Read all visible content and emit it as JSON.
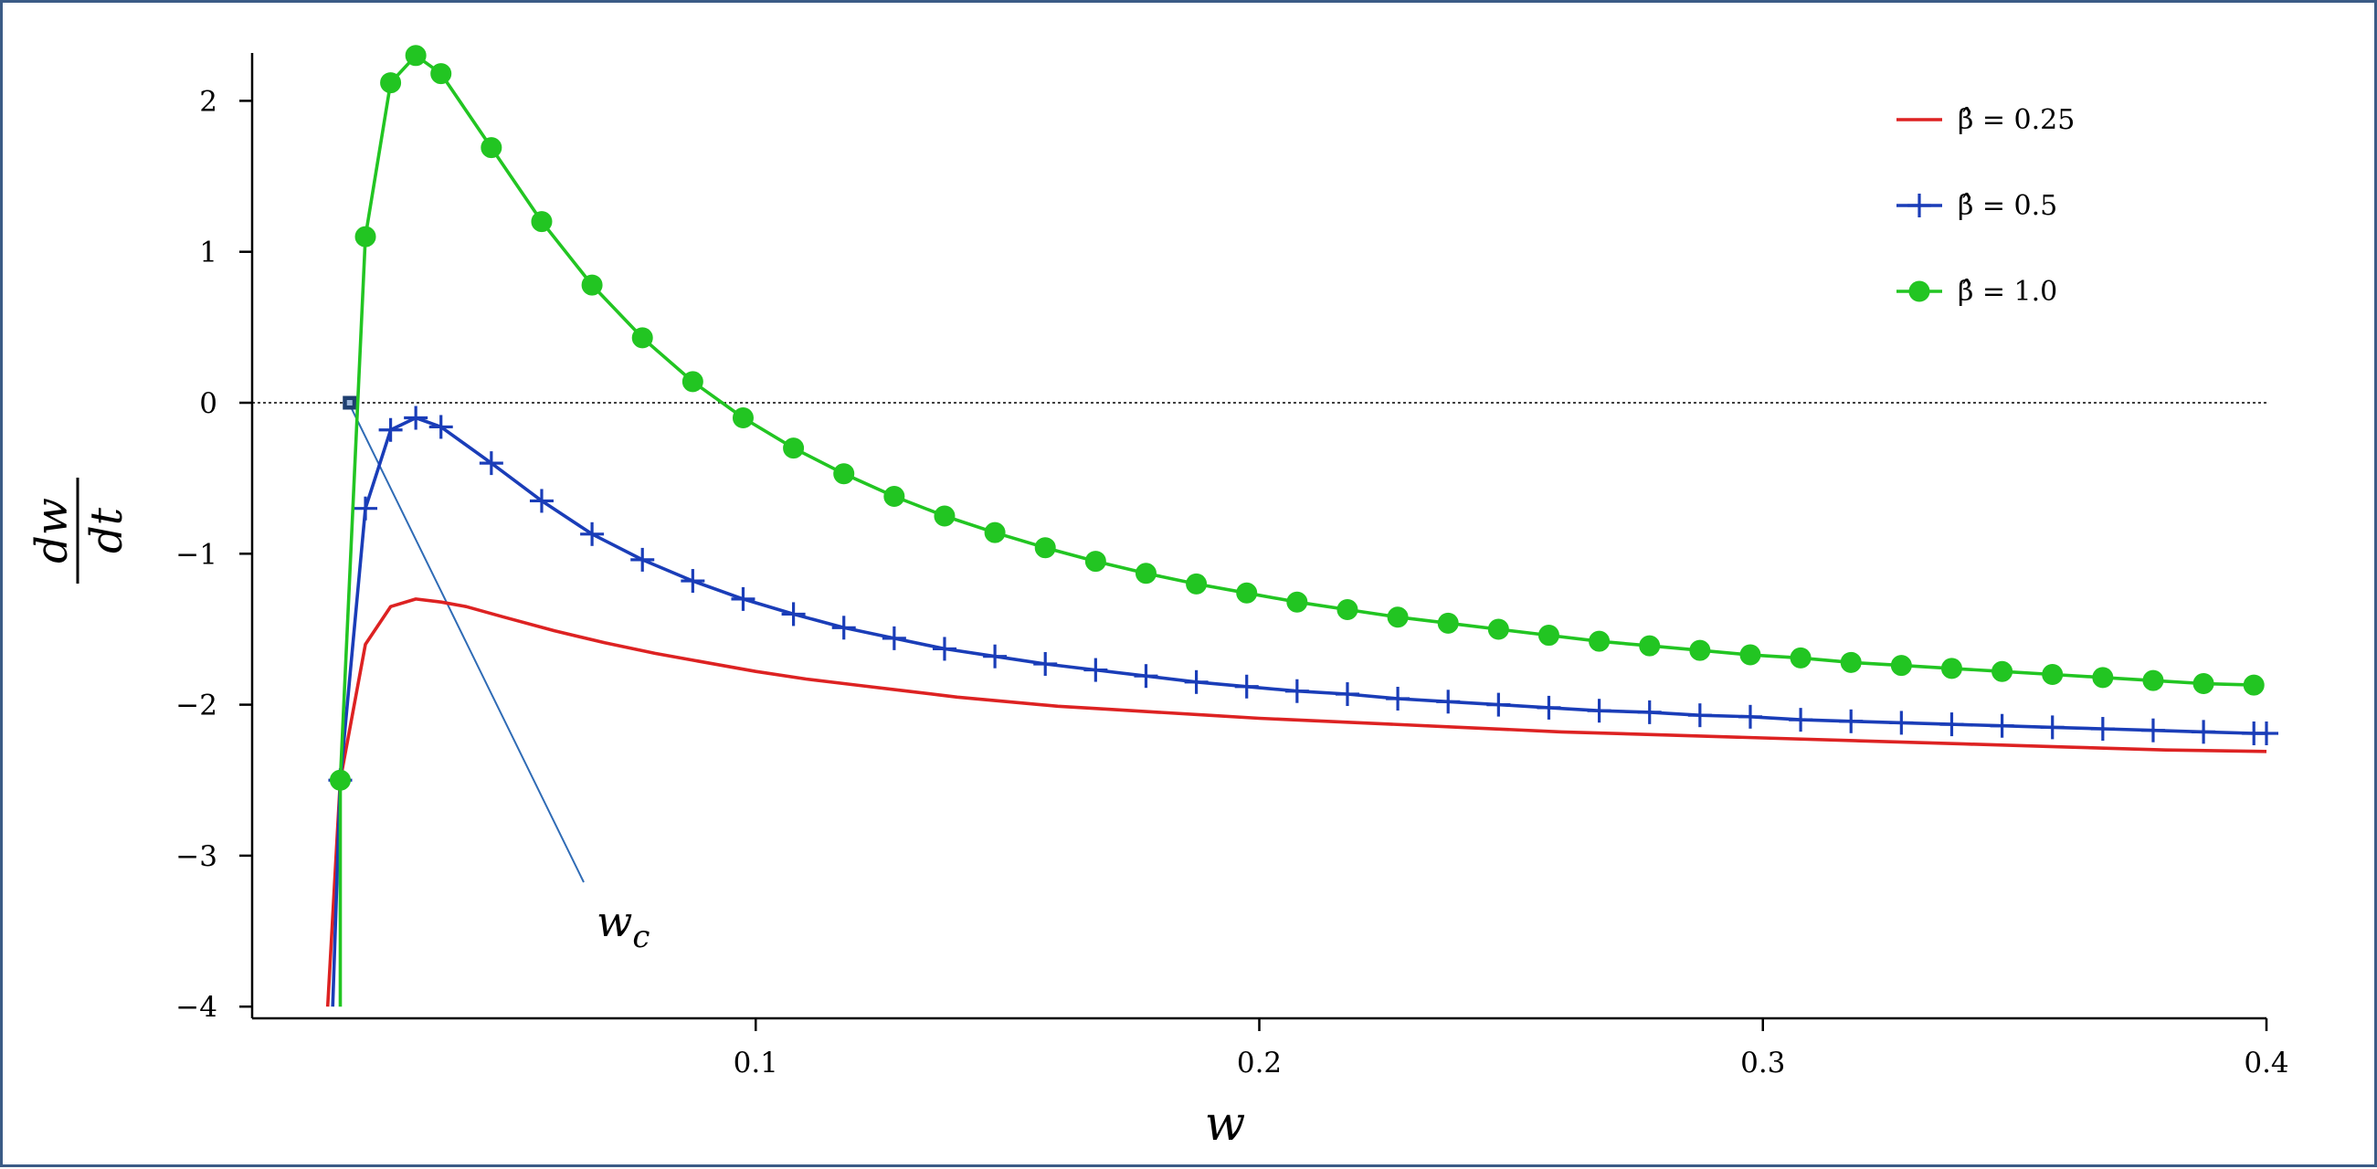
{
  "chart_data": {
    "type": "line",
    "title": "",
    "xlabel": "w",
    "ylabel": {
      "numerator": "dw",
      "denominator": "dt"
    },
    "xlim": [
      0.0,
      0.4
    ],
    "ylim": [
      -4,
      2.3
    ],
    "xticks": [
      0.1,
      0.2,
      0.3,
      0.4
    ],
    "xtick_labels": [
      "0.1",
      "0.2",
      "0.3",
      "0.4"
    ],
    "yticks": [
      2,
      1,
      0,
      -1,
      -2,
      -3,
      -4
    ],
    "ytick_labels": [
      "2",
      "1",
      "0",
      "−1",
      "−2",
      "−3",
      "−4"
    ],
    "grid": false,
    "zero_reference_line": true,
    "legend_position": "top-right",
    "series": [
      {
        "name": "β̂ = 0.25",
        "color": "#dd2222",
        "marker": "none",
        "points": [
          [
            0.015,
            -4.0
          ],
          [
            0.0175,
            -2.5
          ],
          [
            0.0225,
            -1.6
          ],
          [
            0.0275,
            -1.35
          ],
          [
            0.0325,
            -1.3
          ],
          [
            0.0375,
            -1.32
          ],
          [
            0.0425,
            -1.35
          ],
          [
            0.05,
            -1.42
          ],
          [
            0.06,
            -1.51
          ],
          [
            0.07,
            -1.59
          ],
          [
            0.08,
            -1.66
          ],
          [
            0.09,
            -1.72
          ],
          [
            0.1,
            -1.78
          ],
          [
            0.11,
            -1.83
          ],
          [
            0.12,
            -1.87
          ],
          [
            0.13,
            -1.91
          ],
          [
            0.14,
            -1.95
          ],
          [
            0.15,
            -1.98
          ],
          [
            0.16,
            -2.01
          ],
          [
            0.17,
            -2.03
          ],
          [
            0.18,
            -2.05
          ],
          [
            0.19,
            -2.07
          ],
          [
            0.2,
            -2.09
          ],
          [
            0.22,
            -2.12
          ],
          [
            0.24,
            -2.15
          ],
          [
            0.26,
            -2.18
          ],
          [
            0.28,
            -2.2
          ],
          [
            0.3,
            -2.22
          ],
          [
            0.32,
            -2.24
          ],
          [
            0.34,
            -2.26
          ],
          [
            0.36,
            -2.28
          ],
          [
            0.38,
            -2.3
          ],
          [
            0.4,
            -2.31
          ]
        ]
      },
      {
        "name": "β̂ = 0.5",
        "color": "#1a3db8",
        "marker": "plus",
        "points": [
          [
            0.016,
            -4.0
          ],
          [
            0.0175,
            -2.5
          ],
          [
            0.0225,
            -0.7
          ],
          [
            0.0275,
            -0.18
          ],
          [
            0.0325,
            -0.1
          ],
          [
            0.0375,
            -0.16
          ],
          [
            0.0475,
            -0.4
          ],
          [
            0.0575,
            -0.65
          ],
          [
            0.0675,
            -0.87
          ],
          [
            0.0775,
            -1.04
          ],
          [
            0.0875,
            -1.18
          ],
          [
            0.0975,
            -1.3
          ],
          [
            0.1075,
            -1.4
          ],
          [
            0.1175,
            -1.49
          ],
          [
            0.1275,
            -1.56
          ],
          [
            0.1375,
            -1.63
          ],
          [
            0.1475,
            -1.68
          ],
          [
            0.1575,
            -1.73
          ],
          [
            0.1675,
            -1.77
          ],
          [
            0.1775,
            -1.81
          ],
          [
            0.1875,
            -1.85
          ],
          [
            0.1975,
            -1.88
          ],
          [
            0.2075,
            -1.91
          ],
          [
            0.2175,
            -1.93
          ],
          [
            0.2275,
            -1.96
          ],
          [
            0.2375,
            -1.98
          ],
          [
            0.2475,
            -2.0
          ],
          [
            0.2575,
            -2.02
          ],
          [
            0.2675,
            -2.04
          ],
          [
            0.2775,
            -2.05
          ],
          [
            0.2875,
            -2.07
          ],
          [
            0.2975,
            -2.08
          ],
          [
            0.3075,
            -2.1
          ],
          [
            0.3175,
            -2.11
          ],
          [
            0.3275,
            -2.12
          ],
          [
            0.3375,
            -2.13
          ],
          [
            0.3475,
            -2.14
          ],
          [
            0.3575,
            -2.15
          ],
          [
            0.3675,
            -2.16
          ],
          [
            0.3775,
            -2.17
          ],
          [
            0.3875,
            -2.18
          ],
          [
            0.3975,
            -2.19
          ],
          [
            0.4,
            -2.19
          ]
        ]
      },
      {
        "name": "β̂ = 1.0",
        "color": "#22c522",
        "marker": "circle",
        "points": [
          [
            0.0175,
            -4.0
          ],
          [
            0.0175,
            -2.5
          ],
          [
            0.0225,
            1.1
          ],
          [
            0.0275,
            2.12
          ],
          [
            0.0325,
            2.3
          ],
          [
            0.0375,
            2.18
          ],
          [
            0.0475,
            1.69
          ],
          [
            0.0575,
            1.2
          ],
          [
            0.0675,
            0.78
          ],
          [
            0.0775,
            0.43
          ],
          [
            0.0875,
            0.14
          ],
          [
            0.0975,
            -0.1
          ],
          [
            0.1075,
            -0.3
          ],
          [
            0.1175,
            -0.47
          ],
          [
            0.1275,
            -0.62
          ],
          [
            0.1375,
            -0.75
          ],
          [
            0.1475,
            -0.86
          ],
          [
            0.1575,
            -0.96
          ],
          [
            0.1675,
            -1.05
          ],
          [
            0.1775,
            -1.13
          ],
          [
            0.1875,
            -1.2
          ],
          [
            0.1975,
            -1.26
          ],
          [
            0.2075,
            -1.32
          ],
          [
            0.2175,
            -1.37
          ],
          [
            0.2275,
            -1.42
          ],
          [
            0.2375,
            -1.46
          ],
          [
            0.2475,
            -1.5
          ],
          [
            0.2575,
            -1.54
          ],
          [
            0.2675,
            -1.58
          ],
          [
            0.2775,
            -1.61
          ],
          [
            0.2875,
            -1.64
          ],
          [
            0.2975,
            -1.67
          ],
          [
            0.3075,
            -1.69
          ],
          [
            0.3175,
            -1.72
          ],
          [
            0.3275,
            -1.74
          ],
          [
            0.3375,
            -1.76
          ],
          [
            0.3475,
            -1.78
          ],
          [
            0.3575,
            -1.8
          ],
          [
            0.3675,
            -1.82
          ],
          [
            0.3775,
            -1.84
          ],
          [
            0.3875,
            -1.86
          ],
          [
            0.3975,
            -1.87
          ]
        ]
      }
    ],
    "annotation": {
      "label_main": "w",
      "label_sub": "c",
      "target": [
        0.019,
        0.0
      ]
    }
  }
}
